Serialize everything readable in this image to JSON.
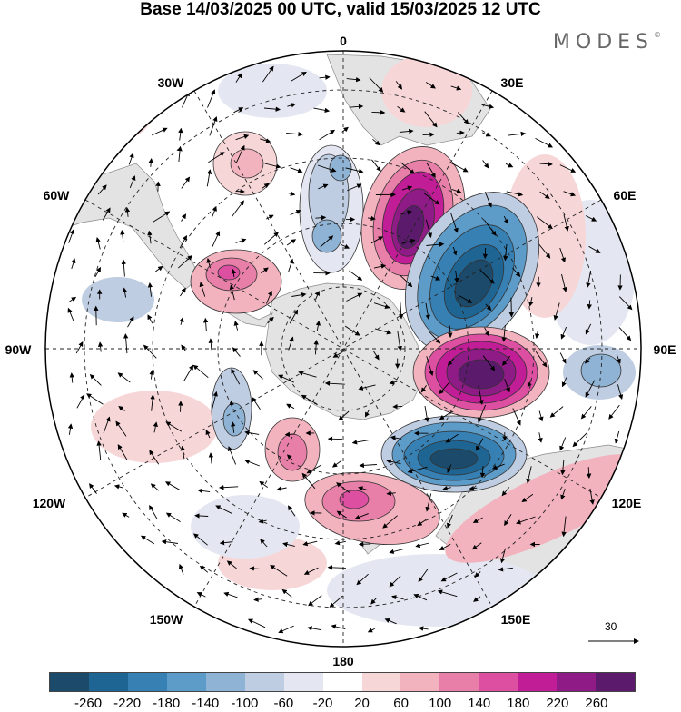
{
  "title": "Base 14/03/2025 00 UTC, valid 15/03/2025 12 UTC",
  "brand": "MODES",
  "brand_mark": "©",
  "map": {
    "projection": "south-polar-stereographic",
    "longitude_labels": {
      "top": "0",
      "upper_right": "30E",
      "right_upper": "60E",
      "right": "90E",
      "right_lower": "120E",
      "lower_right": "150E",
      "bottom": "180",
      "lower_left": "150W",
      "left_lower": "120W",
      "left": "90W",
      "left_upper": "60W",
      "upper_left": "30W"
    }
  },
  "vector_scale": {
    "label": "30"
  },
  "colorbar": {
    "colors": [
      "#1b4a6b",
      "#1f6593",
      "#3680b4",
      "#5d9cc8",
      "#8fb3d4",
      "#bfcde2",
      "#e4e7f1",
      "#ffffff",
      "#f7d6d8",
      "#f2b3bf",
      "#e87fa8",
      "#dc4fa1",
      "#c01d96",
      "#8e1b86",
      "#5c1a6c"
    ],
    "tick_labels": [
      "-260",
      "-220",
      "-180",
      "-140",
      "-100",
      "-60",
      "-20",
      "20",
      "60",
      "100",
      "140",
      "180",
      "220",
      "260"
    ]
  },
  "legend_colors": {
    "land": "#e3e3e3",
    "positive_strong": "#6b1676",
    "negative_strong": "#163f5c"
  }
}
